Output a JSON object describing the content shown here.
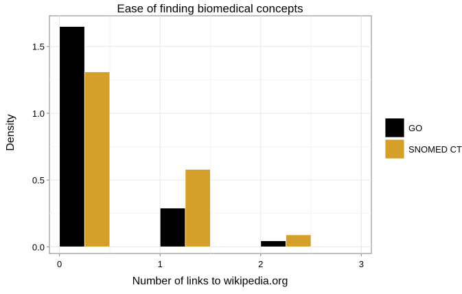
{
  "chart_data": {
    "type": "bar",
    "title": "Ease of finding biomedical concepts",
    "xlabel": "Number of links to wikipedia.org",
    "ylabel": "Density",
    "xlim": [
      -0.1,
      3.1
    ],
    "ylim": [
      -0.05,
      1.73
    ],
    "x_ticks": [
      0,
      1,
      2,
      3
    ],
    "x_tick_labels": [
      "0",
      "1",
      "2",
      "3"
    ],
    "y_ticks": [
      0.0,
      0.5,
      1.0,
      1.5
    ],
    "y_tick_labels": [
      "0.0",
      "0.5",
      "1.0",
      "1.5"
    ],
    "bar_width": 0.25,
    "grid": true,
    "legend_position": "right",
    "series": [
      {
        "name": "GO",
        "color": "#000000",
        "x": [
          0,
          1,
          2
        ],
        "values": [
          1.65,
          0.29,
          0.045
        ]
      },
      {
        "name": "SNOMED CT",
        "color": "#D4A02A",
        "x": [
          0,
          1,
          2
        ],
        "values": [
          1.31,
          0.58,
          0.09
        ]
      }
    ]
  }
}
